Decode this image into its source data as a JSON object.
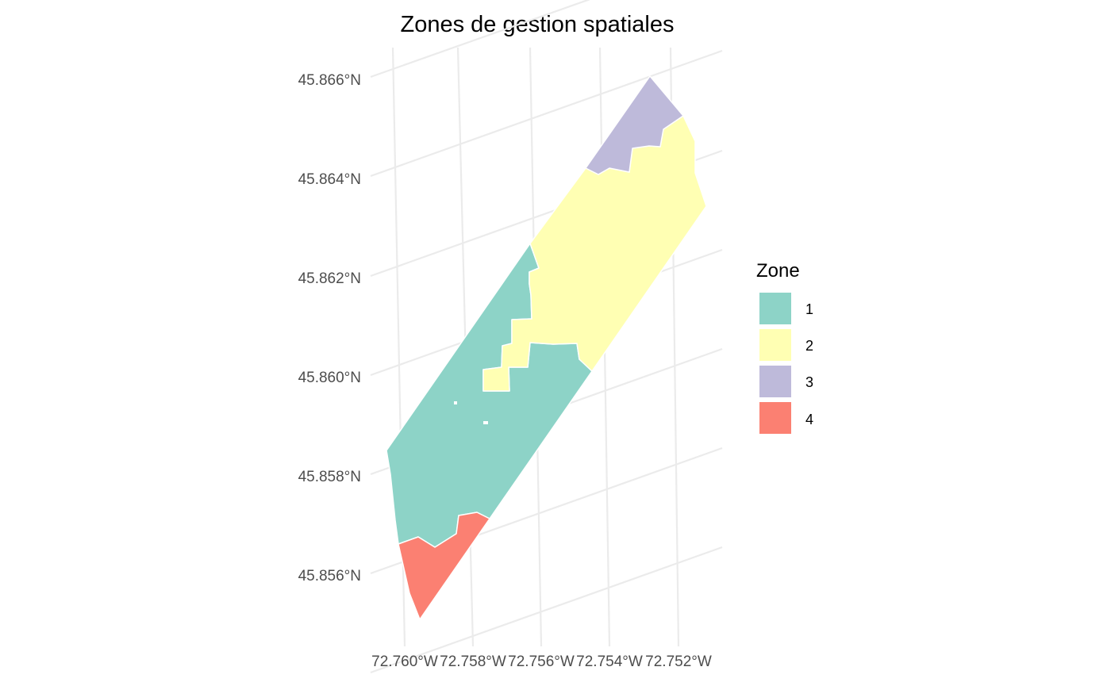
{
  "title": "Zones de gestion spatiales",
  "map": {
    "latitude_labels": [
      "45.866°N",
      "45.864°N",
      "45.862°N",
      "45.860°N",
      "45.858°N",
      "45.856°N"
    ],
    "longitude_labels": [
      "72.760°W",
      "72.758°W",
      "72.756°W",
      "72.754°W",
      "72.752°W"
    ],
    "background": "#ffffff",
    "grid_color": "#ebebeb"
  },
  "legend": {
    "title": "Zone",
    "items": [
      {
        "label": "1",
        "color": "#8DD3C7"
      },
      {
        "label": "2",
        "color": "#FFFFB3"
      },
      {
        "label": "3",
        "color": "#BEBADA"
      },
      {
        "label": "4",
        "color": "#FB8072"
      }
    ]
  }
}
